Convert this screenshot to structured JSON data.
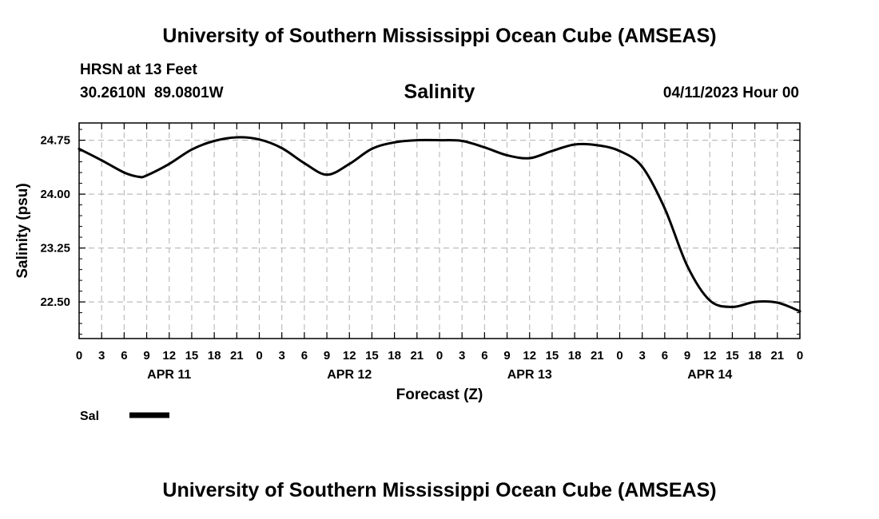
{
  "page": {
    "header_title": "University of Southern Mississippi Ocean Cube (AMSEAS)",
    "footer_title": "University of Southern Mississippi Ocean Cube (AMSEAS)",
    "station_line": "HRSN at 13 Feet",
    "coords_line": "30.2610N  89.0801W",
    "date_line": "04/11/2023 Hour 00"
  },
  "chart_data": {
    "type": "line",
    "title": "Salinity",
    "xlabel": "Forecast (Z)",
    "ylabel": "Salinity (psu)",
    "xlim": [
      0,
      96
    ],
    "ylim": [
      21.99,
      24.99
    ],
    "yticks": [
      22.5,
      23.25,
      24.0,
      24.75
    ],
    "ytick_labels": [
      "22.50",
      "23.25",
      "24.00",
      "24.75"
    ],
    "y_minor_step": 0.15,
    "xticks": [
      0,
      3,
      6,
      9,
      12,
      15,
      18,
      21,
      24,
      27,
      30,
      33,
      36,
      39,
      42,
      45,
      48,
      51,
      54,
      57,
      60,
      63,
      66,
      69,
      72,
      75,
      78,
      81,
      84,
      87,
      90,
      93,
      96
    ],
    "xtick_labels": [
      "0",
      "3",
      "6",
      "9",
      "12",
      "15",
      "18",
      "21",
      "0",
      "3",
      "6",
      "9",
      "12",
      "15",
      "18",
      "21",
      "0",
      "3",
      "6",
      "9",
      "12",
      "15",
      "18",
      "21",
      "0",
      "3",
      "6",
      "9",
      "12",
      "15",
      "18",
      "21",
      "0"
    ],
    "day_labels": [
      {
        "label": "APR 11",
        "hour": 12
      },
      {
        "label": "APR 12",
        "hour": 36
      },
      {
        "label": "APR 13",
        "hour": 60
      },
      {
        "label": "APR 14",
        "hour": 84
      }
    ],
    "grid": true,
    "legend_position": "bottom-left",
    "series": [
      {
        "name": "Sal",
        "color": "#000000",
        "x": [
          0,
          3,
          6,
          8,
          9,
          12,
          15,
          18,
          21,
          24,
          27,
          30,
          33,
          36,
          39,
          42,
          45,
          48,
          51,
          54,
          57,
          60,
          63,
          66,
          69,
          72,
          75,
          78,
          81,
          84,
          87,
          90,
          93,
          96
        ],
        "values": [
          24.63,
          24.47,
          24.3,
          24.24,
          24.26,
          24.42,
          24.62,
          24.74,
          24.79,
          24.76,
          24.64,
          24.43,
          24.27,
          24.42,
          24.63,
          24.72,
          24.75,
          24.75,
          24.74,
          24.65,
          24.54,
          24.5,
          24.6,
          24.69,
          24.68,
          24.6,
          24.38,
          23.8,
          23.0,
          22.52,
          22.43,
          22.5,
          22.49,
          22.37
        ]
      }
    ]
  }
}
